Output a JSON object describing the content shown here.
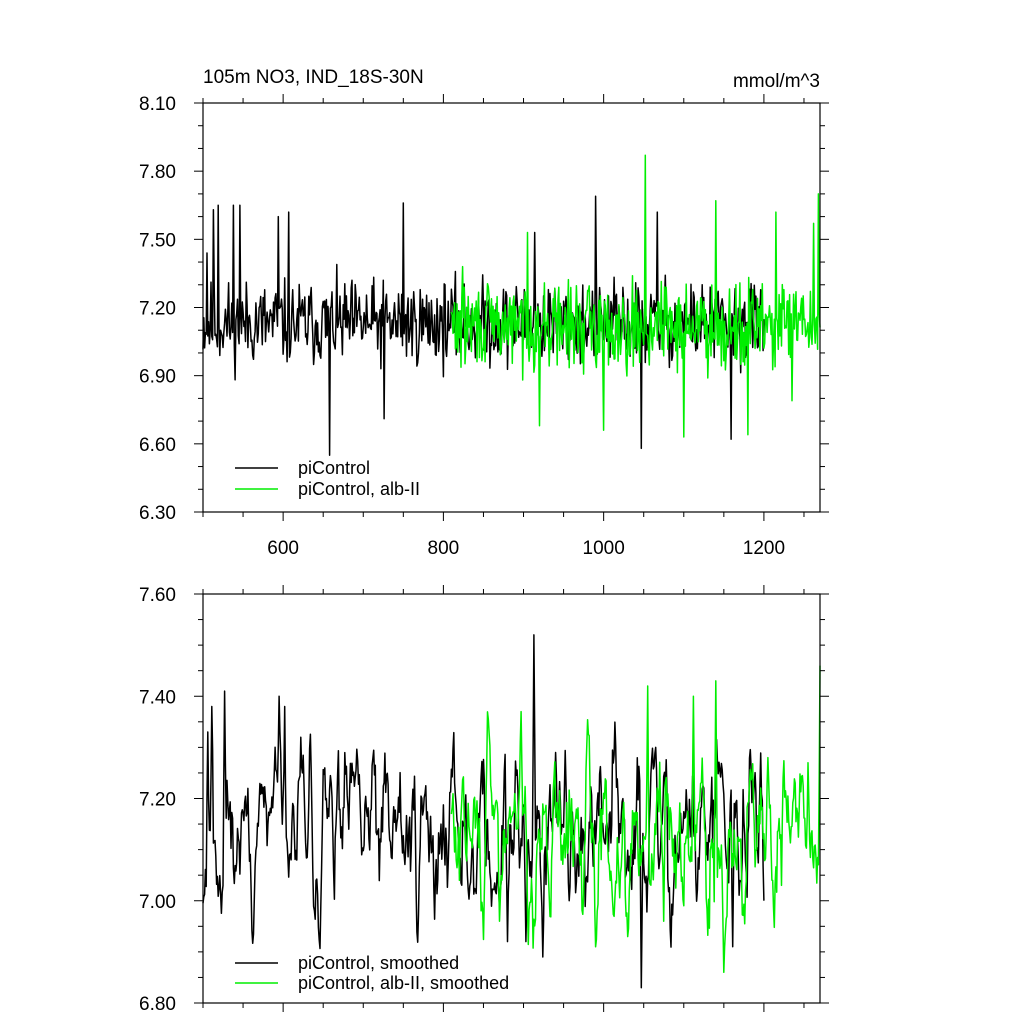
{
  "chart_data": [
    {
      "type": "line",
      "title": "105m NO3, IND_18S-30N",
      "units": "mmol/m^3",
      "xlim": [
        500,
        1270
      ],
      "ylim": [
        6.3,
        8.1
      ],
      "xticks": [
        600,
        800,
        1000,
        1200
      ],
      "xtick_labels": [
        "600",
        "800",
        "1000",
        "1200"
      ],
      "yticks": [
        6.3,
        6.6,
        6.9,
        7.2,
        7.5,
        7.8,
        8.1
      ],
      "ytick_labels": [
        "6.30",
        "6.60",
        "6.90",
        "7.20",
        "7.50",
        "7.80",
        "8.10"
      ],
      "legend_position": "lower-left",
      "series": [
        {
          "name": "piControl",
          "color": "#000000",
          "x_range": [
            500,
            1200
          ],
          "mean": 7.13,
          "spread": 0.17,
          "noise_seed": 11,
          "spikes": [
            [
              505,
              7.44
            ],
            [
              513,
              7.63
            ],
            [
              519,
              7.65
            ],
            [
              538,
              7.65
            ],
            [
              546,
              7.65
            ],
            [
              594,
              7.6
            ],
            [
              607,
              7.62
            ],
            [
              658,
              6.55
            ],
            [
              726,
              6.71
            ],
            [
              750,
              7.66
            ],
            [
              914,
              7.53
            ],
            [
              990,
              7.69
            ],
            [
              1047,
              6.58
            ],
            [
              1067,
              7.62
            ],
            [
              1159,
              6.62
            ]
          ]
        },
        {
          "name": "piControl, alb-II",
          "color": "#00ee00",
          "x_range": [
            810,
            1270
          ],
          "mean": 7.12,
          "spread": 0.17,
          "noise_seed": 29,
          "spikes": [
            [
              824,
              7.38
            ],
            [
              905,
              7.53
            ],
            [
              920,
              6.68
            ],
            [
              1000,
              6.66
            ],
            [
              1052,
              7.87
            ],
            [
              1100,
              6.63
            ],
            [
              1140,
              7.67
            ],
            [
              1180,
              6.64
            ],
            [
              1215,
              7.62
            ],
            [
              1235,
              6.79
            ],
            [
              1262,
              7.57
            ],
            [
              1268,
              7.7
            ]
          ]
        }
      ]
    },
    {
      "type": "line",
      "xlim": [
        500,
        1270
      ],
      "ylim": [
        6.8,
        7.6
      ],
      "xticks": [
        600,
        800,
        1000,
        1200
      ],
      "yticks": [
        6.8,
        7.0,
        7.2,
        7.4,
        7.6
      ],
      "ytick_labels": [
        "6.80",
        "7.00",
        "7.20",
        "7.40",
        "7.60"
      ],
      "legend_position": "lower-left",
      "series": [
        {
          "name": "piControl, smoothed",
          "color": "#000000",
          "x_range": [
            500,
            1200
          ],
          "mean": 7.14,
          "spread": 0.09,
          "noise_seed": 11,
          "spikes": [
            [
              506,
              7.33
            ],
            [
              511,
              7.38
            ],
            [
              527,
              7.41
            ],
            [
              595,
              7.4
            ],
            [
              602,
              7.38
            ],
            [
              818,
              7.15
            ],
            [
              880,
              6.92
            ],
            [
              903,
              6.92
            ],
            [
              913,
              7.52
            ],
            [
              924,
              6.89
            ],
            [
              940,
              7.29
            ],
            [
              1047,
              6.83
            ],
            [
              1065,
              7.3
            ],
            [
              1161,
              6.91
            ],
            [
              1200,
              7.0
            ]
          ]
        },
        {
          "name": "piControl, alb-II, smoothed",
          "color": "#00ee00",
          "x_range": [
            810,
            1270
          ],
          "mean": 7.12,
          "spread": 0.09,
          "noise_seed": 29,
          "spikes": [
            [
              870,
              6.96
            ],
            [
              897,
              7.37
            ],
            [
              990,
              6.91
            ],
            [
              1055,
              7.42
            ],
            [
              1075,
              6.96
            ],
            [
              1112,
              7.4
            ],
            [
              1140,
              7.43
            ],
            [
              1150,
              6.86
            ],
            [
              1205,
              7.28
            ],
            [
              1222,
              7.03
            ],
            [
              1255,
              7.27
            ],
            [
              1270,
              7.46
            ]
          ]
        }
      ]
    }
  ]
}
